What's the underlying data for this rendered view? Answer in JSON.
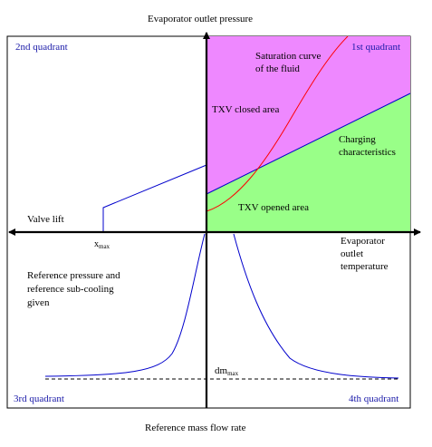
{
  "axes": {
    "top_label": "Evaporator outlet pressure",
    "bottom_label": "Reference mass flow rate",
    "left_label": "Valve lift",
    "right_label_lines": [
      "Evaporator",
      "outlet",
      "temperature"
    ]
  },
  "quadrants": {
    "q1": "1st quadrant",
    "q2": "2nd quadrant",
    "q3": "3rd quadrant",
    "q4": "4th quadrant"
  },
  "annotations": {
    "saturation_lines": [
      "Saturation curve",
      "of the fluid"
    ],
    "txv_closed": "TXV closed area",
    "charging_lines": [
      "Charging",
      "characteristics"
    ],
    "txv_opened": "TXV opened area",
    "reference_lines": [
      "Reference pressure and",
      "reference sub-cooling",
      "given"
    ],
    "xmax_base": "x",
    "xmax_sub": "max",
    "dmmax_base": "dm",
    "dmmax_sub": "max"
  },
  "colors": {
    "closed_area": "#ee88ff",
    "opened_area": "#99ff88",
    "saturation_curve": "#ff0000",
    "lines": "#0000cc",
    "quadrant_label": "#1a1aa8"
  }
}
